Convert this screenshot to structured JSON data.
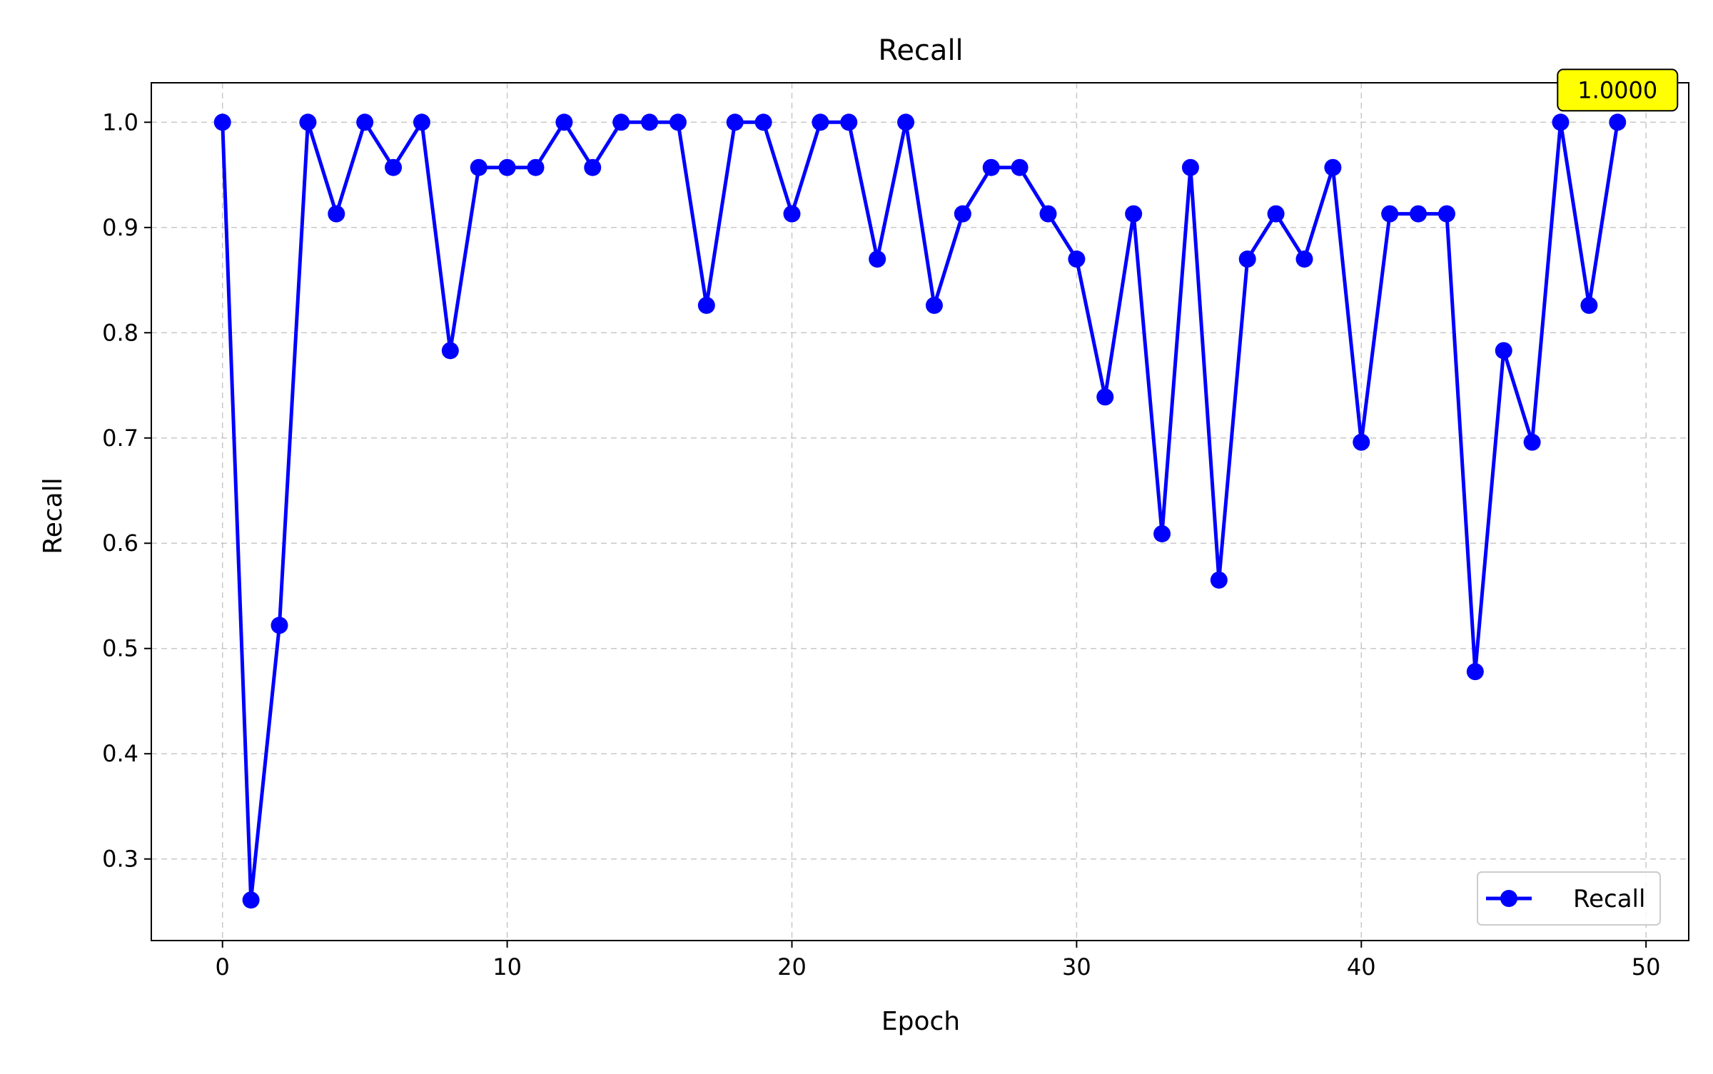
{
  "chart_data": {
    "type": "line",
    "title": "Recall",
    "xlabel": "Epoch",
    "ylabel": "Recall",
    "xlim": [
      -2.5,
      51.5
    ],
    "ylim": [
      0.2225,
      1.0375
    ],
    "xticks": [
      0,
      10,
      20,
      30,
      40,
      50
    ],
    "xtick_labels": [
      "0",
      "10",
      "20",
      "30",
      "40",
      "50"
    ],
    "yticks": [
      0.3,
      0.4,
      0.5,
      0.6,
      0.7,
      0.8,
      0.9,
      1.0
    ],
    "ytick_labels": [
      "0.3",
      "0.4",
      "0.5",
      "0.6",
      "0.7",
      "0.8",
      "0.9",
      "1.0"
    ],
    "grid": true,
    "legend_position": "lower-right",
    "series": [
      {
        "name": "Recall",
        "color": "#0000ff",
        "marker": "circle",
        "x": [
          0,
          1,
          2,
          3,
          4,
          5,
          6,
          7,
          8,
          9,
          10,
          11,
          12,
          13,
          14,
          15,
          16,
          17,
          18,
          19,
          20,
          21,
          22,
          23,
          24,
          25,
          26,
          27,
          28,
          29,
          30,
          31,
          32,
          33,
          34,
          35,
          36,
          37,
          38,
          39,
          40,
          41,
          42,
          43,
          44,
          45,
          46,
          47,
          48,
          49
        ],
        "y": [
          1.0,
          0.261,
          0.522,
          1.0,
          0.913,
          1.0,
          0.957,
          1.0,
          0.783,
          0.957,
          0.957,
          0.957,
          1.0,
          0.957,
          1.0,
          1.0,
          1.0,
          0.826,
          1.0,
          1.0,
          0.913,
          1.0,
          1.0,
          0.87,
          1.0,
          0.826,
          0.913,
          0.957,
          0.957,
          0.913,
          0.87,
          0.739,
          0.913,
          0.609,
          0.957,
          0.565,
          0.87,
          0.913,
          0.87,
          0.957,
          0.696,
          0.913,
          0.913,
          0.913,
          0.478,
          0.783,
          0.696,
          1.0,
          0.826,
          1.0
        ]
      }
    ],
    "annotations": [
      {
        "text": "1.0000",
        "x": 49,
        "y": 1.0,
        "box_color": "#ffff00"
      }
    ]
  }
}
